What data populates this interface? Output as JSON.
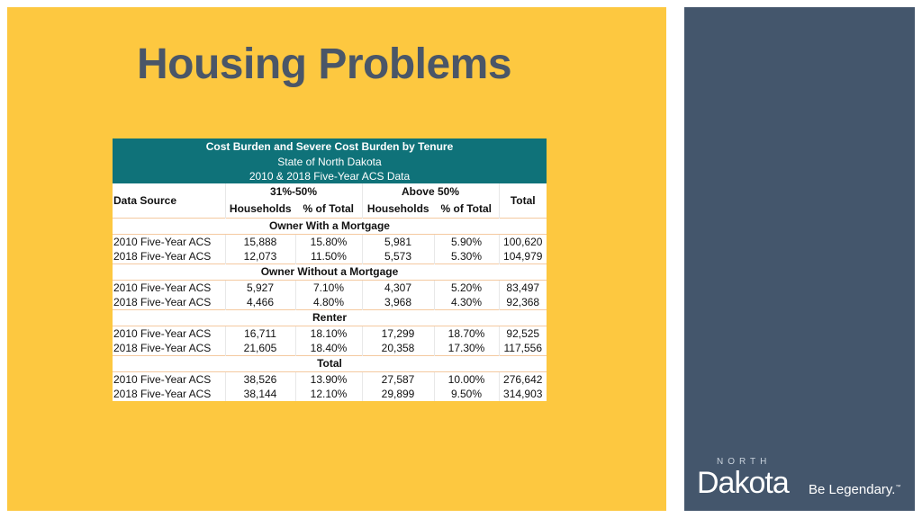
{
  "title": "Housing Problems",
  "table": {
    "header_title": "Cost Burden and Severe Cost Burden by Tenure",
    "header_sub1": "State of North Dakota",
    "header_sub2": "2010 & 2018 Five-Year ACS Data",
    "col_group1": "31%-50%",
    "col_group2": "Above 50%",
    "col_total": "Total",
    "col_source": "Data Source",
    "col_households1": "Households",
    "col_pct1": "% of Total",
    "col_households2": "Households",
    "col_pct2": "% of Total",
    "groups": [
      {
        "name": "Owner With a Mortgage",
        "rows": [
          [
            "2010 Five-Year ACS",
            "15,888",
            "15.80%",
            "5,981",
            "5.90%",
            "100,620"
          ],
          [
            "2018 Five-Year ACS",
            "12,073",
            "11.50%",
            "5,573",
            "5.30%",
            "104,979"
          ]
        ]
      },
      {
        "name": "Owner Without a Mortgage",
        "rows": [
          [
            "2010 Five-Year ACS",
            "5,927",
            "7.10%",
            "4,307",
            "5.20%",
            "83,497"
          ],
          [
            "2018 Five-Year ACS",
            "4,466",
            "4.80%",
            "3,968",
            "4.30%",
            "92,368"
          ]
        ]
      },
      {
        "name": "Renter",
        "rows": [
          [
            "2010 Five-Year ACS",
            "16,711",
            "18.10%",
            "17,299",
            "18.70%",
            "92,525"
          ],
          [
            "2018 Five-Year ACS",
            "21,605",
            "18.40%",
            "20,358",
            "17.30%",
            "117,556"
          ]
        ]
      },
      {
        "name": "Total",
        "rows": [
          [
            "2010 Five-Year ACS",
            "38,526",
            "13.90%",
            "27,587",
            "10.00%",
            "276,642"
          ],
          [
            "2018 Five-Year ACS",
            "38,144",
            "12.10%",
            "29,899",
            "9.50%",
            "314,903"
          ]
        ]
      }
    ]
  },
  "logo": {
    "north": "NORTH",
    "dakota": "Dakota",
    "tagline": "Be Legendary.",
    "tm": "™"
  },
  "colors": {
    "slide_bg": "#fdc840",
    "side_panel": "#44566c",
    "header_teal": "#0f7279",
    "title": "#4a5668"
  }
}
